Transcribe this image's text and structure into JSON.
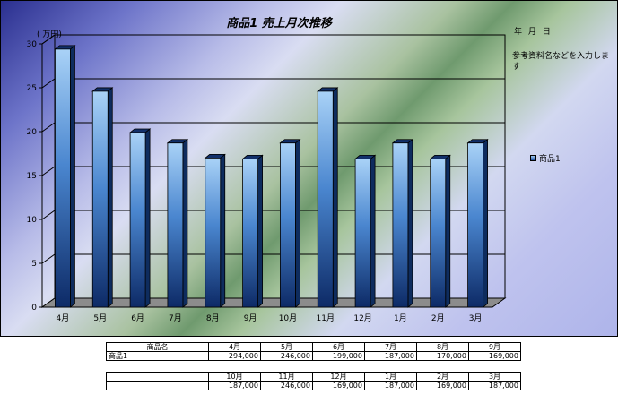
{
  "chart_data": {
    "type": "bar",
    "title": "商品1  売上月次推移",
    "ylabel": "( 万円)",
    "categories": [
      "4月",
      "5月",
      "6月",
      "7月",
      "8月",
      "9月",
      "10月",
      "11月",
      "12月",
      "1月",
      "2月",
      "3月"
    ],
    "series": [
      {
        "name": "商品1",
        "values": [
          29.4,
          24.6,
          19.9,
          18.7,
          17.0,
          16.9,
          18.7,
          24.6,
          16.9,
          18.7,
          16.9,
          18.7
        ]
      }
    ],
    "ylim": [
      0,
      30
    ],
    "yticks": [
      0,
      5,
      10,
      15,
      20,
      25,
      30
    ],
    "grid": true,
    "legend_position": "right"
  },
  "header": {
    "date_label": "年 月 日",
    "ref_note": "参考資料名などを入力します"
  },
  "table": {
    "name_header": "商品名",
    "row_label": "商品1",
    "first_half": {
      "months": [
        "4月",
        "5月",
        "6月",
        "7月",
        "8月",
        "9月"
      ],
      "values": [
        "294,000",
        "246,000",
        "199,000",
        "187,000",
        "170,000",
        "169,000"
      ]
    },
    "second_half": {
      "months": [
        "10月",
        "11月",
        "12月",
        "1月",
        "2月",
        "3月"
      ],
      "values": [
        "187,000",
        "246,000",
        "169,000",
        "187,000",
        "169,000",
        "187,000"
      ]
    }
  }
}
